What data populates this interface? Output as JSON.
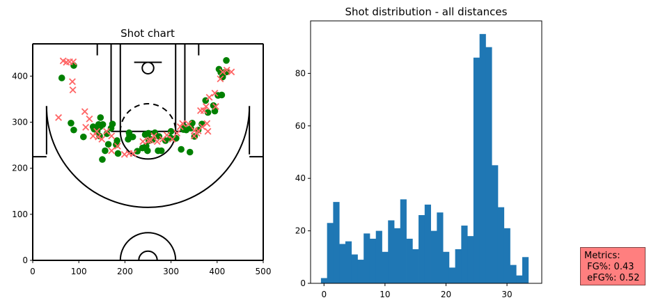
{
  "chart_data": [
    {
      "type": "scatter",
      "title": "Shot chart",
      "xlim": [
        0,
        500
      ],
      "ylim": [
        0,
        470
      ],
      "xticks": [
        "0",
        "100",
        "200",
        "300",
        "400",
        "500"
      ],
      "yticks": [
        "0",
        "100",
        "200",
        "300",
        "400"
      ],
      "series": [
        {
          "marker": "circle",
          "color": "#008000",
          "points": [
            [
              63,
              396
            ],
            [
              89,
              423
            ],
            [
              83,
              298
            ],
            [
              89,
              283
            ],
            [
              110,
              268
            ],
            [
              131,
              290
            ],
            [
              133,
              285
            ],
            [
              140,
              281
            ],
            [
              143,
              295
            ],
            [
              147,
              310
            ],
            [
              145,
              270
            ],
            [
              152,
              295
            ],
            [
              151,
              219
            ],
            [
              157,
              238
            ],
            [
              161,
              275
            ],
            [
              170,
              287
            ],
            [
              173,
              296
            ],
            [
              181,
              251
            ],
            [
              183,
              260
            ],
            [
              185,
              232
            ],
            [
              207,
              263
            ],
            [
              209,
              277
            ],
            [
              210,
              271
            ],
            [
              217,
              268
            ],
            [
              227,
              237
            ],
            [
              238,
              244
            ],
            [
              244,
              273
            ],
            [
              246,
              248
            ],
            [
              249,
              238
            ],
            [
              251,
              276
            ],
            [
              252,
              260
            ],
            [
              255,
              263
            ],
            [
              260,
              262
            ],
            [
              265,
              277
            ],
            [
              272,
              238
            ],
            [
              274,
              269
            ],
            [
              279,
              238
            ],
            [
              288,
              260
            ],
            [
              299,
              266
            ],
            [
              300,
              280
            ],
            [
              311,
              265
            ],
            [
              322,
              241
            ],
            [
              327,
              284
            ],
            [
              329,
              290
            ],
            [
              333,
              283
            ],
            [
              341,
              235
            ],
            [
              343,
              287
            ],
            [
              346,
              298
            ],
            [
              351,
              269
            ],
            [
              359,
              283
            ],
            [
              367,
              296
            ],
            [
              375,
              347
            ],
            [
              380,
              321
            ],
            [
              392,
              336
            ],
            [
              395,
              324
            ],
            [
              402,
              358
            ],
            [
              404,
              415
            ],
            [
              408,
              408
            ],
            [
              410,
              359
            ],
            [
              412,
              398
            ],
            [
              416,
              408
            ],
            [
              420,
              434
            ],
            [
              420,
              409
            ],
            [
              164,
              252
            ],
            [
              146,
              290
            ]
          ]
        },
        {
          "marker": "x",
          "color": "#ff6666",
          "points": [
            [
              56,
              310
            ],
            [
              66,
              433
            ],
            [
              73,
              430
            ],
            [
              80,
              431
            ],
            [
              88,
              431
            ],
            [
              86,
              388
            ],
            [
              87,
              370
            ],
            [
              113,
              323
            ],
            [
              115,
              289
            ],
            [
              123,
              307
            ],
            [
              131,
              270
            ],
            [
              139,
              280
            ],
            [
              142,
              268
            ],
            [
              150,
              263
            ],
            [
              160,
              280
            ],
            [
              171,
              238
            ],
            [
              171,
              270
            ],
            [
              184,
              248
            ],
            [
              199,
              230
            ],
            [
              209,
              232
            ],
            [
              218,
              232
            ],
            [
              239,
              258
            ],
            [
              251,
              260
            ],
            [
              256,
              261
            ],
            [
              263,
              270
            ],
            [
              270,
              258
            ],
            [
              282,
              263
            ],
            [
              291,
              272
            ],
            [
              303,
              263
            ],
            [
              313,
              276
            ],
            [
              325,
              297
            ],
            [
              338,
              296
            ],
            [
              351,
              282
            ],
            [
              359,
              281
            ],
            [
              356,
              276
            ],
            [
              364,
              325
            ],
            [
              368,
              290
            ],
            [
              371,
              325
            ],
            [
              378,
              297
            ],
            [
              383,
              354
            ],
            [
              376,
              334
            ],
            [
              395,
              363
            ],
            [
              397,
              334
            ],
            [
              407,
              394
            ],
            [
              412,
              409
            ],
            [
              421,
              413
            ],
            [
              431,
              409
            ],
            [
              380,
              280
            ],
            [
              350,
              270
            ],
            [
              320,
              290
            ]
          ]
        }
      ]
    },
    {
      "type": "bar",
      "title": "Shot distribution - all distances",
      "xlim": [
        -2.2,
        35.7
      ],
      "ylim": [
        0,
        100
      ],
      "xticks": [
        "0",
        "10",
        "20",
        "30"
      ],
      "yticks": [
        "0",
        "20",
        "40",
        "60",
        "80"
      ],
      "bin_start": -0.5,
      "bin_width": 1,
      "values": [
        2,
        23,
        31,
        15,
        16,
        11,
        9,
        19,
        17,
        20,
        12,
        24,
        21,
        32,
        17,
        13,
        26,
        30,
        20,
        27,
        12,
        6,
        13,
        22,
        18,
        86,
        95,
        90,
        45,
        29,
        21,
        7,
        3,
        10
      ],
      "color": "#1f77b4"
    }
  ],
  "metrics": {
    "line1": "Metrics:",
    "line2": " FG%: 0.43",
    "line3": " eFG%: 0.52"
  }
}
